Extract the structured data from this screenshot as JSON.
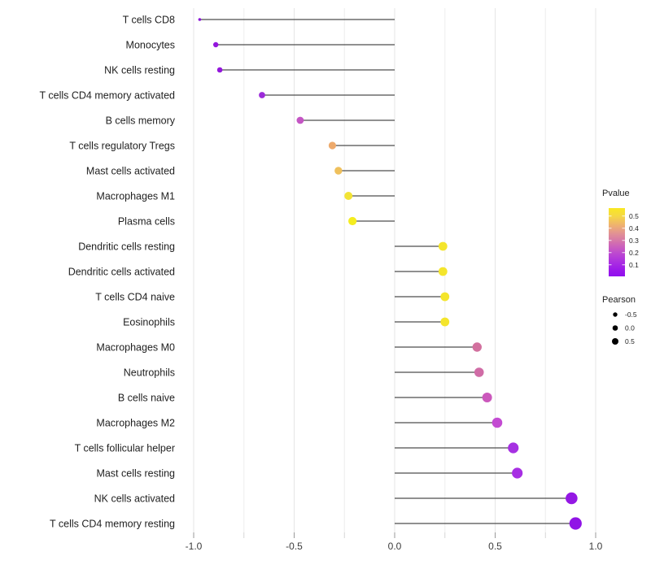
{
  "chart_data": {
    "type": "lollipop",
    "title": "",
    "xlabel": "",
    "ylabel": "",
    "orientation": "horizontal",
    "grid": "vertical-only",
    "xlim": [
      -1.08,
      1.06
    ],
    "x_axis": {
      "major_ticks": [
        -1.0,
        -0.5,
        0.0,
        0.5,
        1.0
      ],
      "major_tick_labels": [
        "-1.0",
        "-0.5",
        "0.0",
        "0.5",
        "1.0"
      ],
      "minor_ticks": [
        -0.75,
        -0.25,
        0.25,
        0.75
      ]
    },
    "points": [
      {
        "name": "T cells CD8",
        "pearson": -0.97,
        "pvalue": 0.03,
        "color": "#8b16d8",
        "r": 1.8
      },
      {
        "name": "Monocytes",
        "pearson": -0.89,
        "pvalue": 0.05,
        "color": "#9316dd",
        "r": 3.2
      },
      {
        "name": "NK cells resting",
        "pearson": -0.87,
        "pvalue": 0.05,
        "color": "#9417dc",
        "r": 3.3
      },
      {
        "name": "T cells CD4 memory activated",
        "pearson": -0.66,
        "pvalue": 0.09,
        "color": "#9c2bd9",
        "r": 3.9
      },
      {
        "name": "B cells memory",
        "pearson": -0.47,
        "pvalue": 0.22,
        "color": "#c455c4",
        "r": 4.4
      },
      {
        "name": "T cells regulatory  Tregs",
        "pearson": -0.31,
        "pvalue": 0.42,
        "color": "#eda96b",
        "r": 4.6
      },
      {
        "name": "Mast cells activated",
        "pearson": -0.28,
        "pvalue": 0.45,
        "color": "#efc05c",
        "r": 4.7
      },
      {
        "name": "Macrophages M1",
        "pearson": -0.23,
        "pvalue": 0.52,
        "color": "#f2e335",
        "r": 5.0
      },
      {
        "name": "Plasma cells",
        "pearson": -0.21,
        "pvalue": 0.54,
        "color": "#f5ed1f",
        "r": 5.1
      },
      {
        "name": "Dendritic cells resting",
        "pearson": 0.24,
        "pvalue": 0.53,
        "color": "#f4e52c",
        "r": 5.4
      },
      {
        "name": "Dendritic cells activated",
        "pearson": 0.24,
        "pvalue": 0.53,
        "color": "#f4e52c",
        "r": 5.4
      },
      {
        "name": "T cells CD4 naive",
        "pearson": 0.25,
        "pvalue": 0.53,
        "color": "#f4e52c",
        "r": 5.4
      },
      {
        "name": "Eosinophils",
        "pearson": 0.25,
        "pvalue": 0.53,
        "color": "#f4e52c",
        "r": 5.4
      },
      {
        "name": "Macrophages M0",
        "pearson": 0.41,
        "pvalue": 0.31,
        "color": "#d2709e",
        "r": 5.7
      },
      {
        "name": "Neutrophils",
        "pearson": 0.42,
        "pvalue": 0.3,
        "color": "#d06ca6",
        "r": 5.8
      },
      {
        "name": "B cells naive",
        "pearson": 0.46,
        "pvalue": 0.26,
        "color": "#cb58bc",
        "r": 6.0
      },
      {
        "name": "Macrophages M2",
        "pearson": 0.51,
        "pvalue": 0.21,
        "color": "#c34bd2",
        "r": 6.3
      },
      {
        "name": "T cells follicular helper",
        "pearson": 0.59,
        "pvalue": 0.13,
        "color": "#a631e2",
        "r": 6.6
      },
      {
        "name": "Mast cells resting",
        "pearson": 0.61,
        "pvalue": 0.12,
        "color": "#a72fe3",
        "r": 6.6
      },
      {
        "name": "NK cells activated",
        "pearson": 0.88,
        "pvalue": 0.05,
        "color": "#9418e4",
        "r": 7.3
      },
      {
        "name": "T cells CD4 memory resting",
        "pearson": 0.9,
        "pvalue": 0.04,
        "color": "#9013e6",
        "r": 7.6
      }
    ],
    "legend_pvalue": {
      "title": "Pvalue",
      "tick_labels": [
        "0.5",
        "0.4",
        "0.3",
        "0.2",
        "0.1"
      ],
      "tick_values": [
        0.5,
        0.4,
        0.3,
        0.2,
        0.1
      ],
      "bar_range": [
        0.005,
        0.565
      ],
      "gradient_stops": [
        {
          "p": 0.565,
          "color": "#f9e821"
        },
        {
          "p": 0.5,
          "color": "#f5d844"
        },
        {
          "p": 0.42,
          "color": "#eeaf72"
        },
        {
          "p": 0.35,
          "color": "#e08f97"
        },
        {
          "p": 0.3,
          "color": "#d678a8"
        },
        {
          "p": 0.25,
          "color": "#cb60bc"
        },
        {
          "p": 0.2,
          "color": "#be4bce"
        },
        {
          "p": 0.12,
          "color": "#aa2ee1"
        },
        {
          "p": 0.05,
          "color": "#9a16ea"
        },
        {
          "p": 0.005,
          "color": "#9010ee"
        }
      ]
    },
    "legend_pearson": {
      "title": "Pearson",
      "items": [
        {
          "label": "-0.5",
          "r": 2.7
        },
        {
          "label": "0.0",
          "r": 3.3
        },
        {
          "label": "0.5",
          "r": 4.0
        }
      ],
      "dot_color": "#000000"
    },
    "style_colors": {
      "stem": "#4d4d4d",
      "grid_major": "#e5e5e5",
      "grid_minor": "#ededed",
      "axis_tick_major": "#9a9a9a",
      "axis_tick_minor": "#d6d6d6",
      "y_label_text": "#1f1f1f",
      "x_tick_text": "#3c3c3c",
      "legend_title_text": "#1f1f1f",
      "legend_tick_text": "#1f1f1f"
    }
  }
}
